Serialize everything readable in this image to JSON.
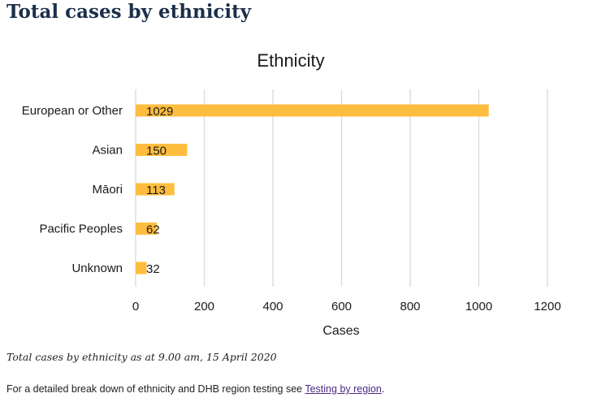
{
  "page": {
    "title": "Total cases by ethnicity",
    "caption": "Total cases by ethnicity as at 9.00 am, 15 April 2020",
    "footnote_prefix": "For a detailed break down of ethnicity and DHB region testing see ",
    "footnote_link": "Testing by region",
    "footnote_suffix": "."
  },
  "chart_data": {
    "type": "bar",
    "orientation": "horizontal",
    "title": "Ethnicity",
    "xlabel": "Cases",
    "ylabel": "",
    "categories": [
      "European or Other",
      "Asian",
      "Māori",
      "Pacific Peoples",
      "Unknown"
    ],
    "values": [
      1029,
      150,
      113,
      62,
      32
    ],
    "xlim": [
      0,
      1200
    ],
    "xticks": [
      0,
      200,
      400,
      600,
      800,
      1000,
      1200
    ],
    "grid": true,
    "legend": "none",
    "colors": {
      "bar": "#ffbd3f",
      "grid": "#d9d9d9",
      "text": "#1a1a1a"
    }
  }
}
